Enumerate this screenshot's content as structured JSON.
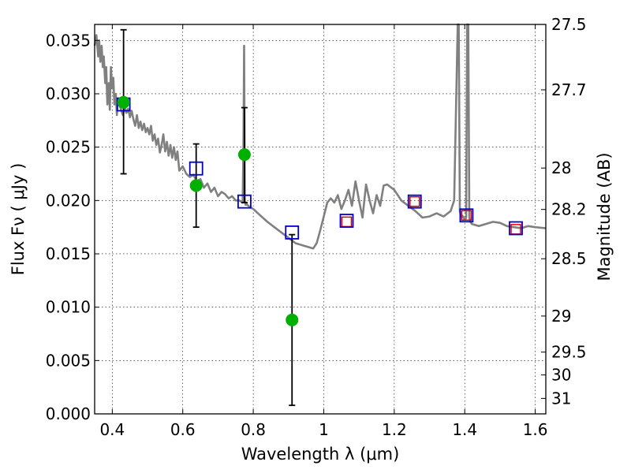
{
  "chart_data": {
    "type": "scatter",
    "xlabel": "Wavelength  λ (μm)",
    "ylabel": "Flux  Fν  ( μJy )",
    "ylabel_right": "Magnitude (AB)",
    "xlim": [
      0.35,
      1.63
    ],
    "ylim": [
      0.0,
      0.0365
    ],
    "grid": true,
    "x_ticks": [
      0.4,
      0.6,
      0.8,
      1.0,
      1.2,
      1.4,
      1.6
    ],
    "x_tick_labels": [
      "0.4",
      "0.6",
      "0.8",
      "1",
      "1.2",
      "1.4",
      "1.6"
    ],
    "y_ticks": [
      0.0,
      0.005,
      0.01,
      0.015,
      0.02,
      0.025,
      0.03,
      0.035
    ],
    "y_tick_labels": [
      "0.000",
      "0.005",
      "0.010",
      "0.015",
      "0.020",
      "0.025",
      "0.030",
      "0.035"
    ],
    "right_ticks": [
      {
        "label": "27.5",
        "flux": 0.0365
      },
      {
        "label": "27.7",
        "flux": 0.03037
      },
      {
        "label": "28",
        "flux": 0.02304
      },
      {
        "label": "28.2",
        "flux": 0.01916
      },
      {
        "label": "28.5",
        "flux": 0.01454
      },
      {
        "label": "29",
        "flux": 0.00917
      },
      {
        "label": "29.5",
        "flux": 0.00579
      },
      {
        "label": "30",
        "flux": 0.00365
      },
      {
        "label": "31",
        "flux": 0.00145
      }
    ],
    "sed_model": {
      "color": "#808080",
      "x": [
        0.35,
        0.355,
        0.36,
        0.363,
        0.366,
        0.37,
        0.373,
        0.376,
        0.38,
        0.383,
        0.386,
        0.39,
        0.393,
        0.396,
        0.4,
        0.403,
        0.406,
        0.41,
        0.413,
        0.416,
        0.42,
        0.425,
        0.43,
        0.435,
        0.44,
        0.445,
        0.45,
        0.455,
        0.46,
        0.465,
        0.47,
        0.475,
        0.48,
        0.485,
        0.49,
        0.495,
        0.5,
        0.505,
        0.51,
        0.515,
        0.52,
        0.525,
        0.53,
        0.535,
        0.54,
        0.545,
        0.55,
        0.555,
        0.56,
        0.565,
        0.57,
        0.575,
        0.58,
        0.585,
        0.59,
        0.6,
        0.61,
        0.62,
        0.63,
        0.64,
        0.65,
        0.66,
        0.67,
        0.68,
        0.69,
        0.7,
        0.71,
        0.72,
        0.73,
        0.74,
        0.75,
        0.76,
        0.77,
        0.772,
        0.774,
        0.776,
        0.778,
        0.78,
        0.782,
        0.79,
        0.8,
        0.82,
        0.84,
        0.86,
        0.88,
        0.9,
        0.92,
        0.94,
        0.96,
        0.97,
        0.98,
        0.99,
        1.0,
        1.01,
        1.02,
        1.03,
        1.04,
        1.05,
        1.06,
        1.07,
        1.08,
        1.09,
        1.1,
        1.11,
        1.12,
        1.13,
        1.14,
        1.15,
        1.16,
        1.17,
        1.18,
        1.2,
        1.22,
        1.24,
        1.26,
        1.28,
        1.3,
        1.32,
        1.34,
        1.36,
        1.37,
        1.38,
        1.383,
        1.386,
        1.389,
        1.392,
        1.395,
        1.398,
        1.401,
        1.404,
        1.407,
        1.41,
        1.413,
        1.416,
        1.42,
        1.44,
        1.46,
        1.48,
        1.5,
        1.52,
        1.54,
        1.56,
        1.58,
        1.6,
        1.63
      ],
      "y": [
        0.0345,
        0.0355,
        0.0335,
        0.035,
        0.033,
        0.0345,
        0.0325,
        0.0335,
        0.031,
        0.0325,
        0.029,
        0.031,
        0.0285,
        0.0325,
        0.0305,
        0.0315,
        0.029,
        0.03,
        0.028,
        0.0295,
        0.029,
        0.0285,
        0.028,
        0.0288,
        0.0282,
        0.0286,
        0.0278,
        0.0284,
        0.0276,
        0.027,
        0.028,
        0.0268,
        0.0274,
        0.0266,
        0.0272,
        0.0264,
        0.0268,
        0.0262,
        0.027,
        0.0256,
        0.0262,
        0.0252,
        0.0258,
        0.0245,
        0.0252,
        0.0262,
        0.0246,
        0.0255,
        0.0242,
        0.0252,
        0.024,
        0.025,
        0.0238,
        0.0246,
        0.0228,
        0.0232,
        0.0225,
        0.0222,
        0.0224,
        0.0218,
        0.022,
        0.0212,
        0.0216,
        0.0208,
        0.0212,
        0.0204,
        0.0208,
        0.0206,
        0.0202,
        0.0204,
        0.02,
        0.02,
        0.0198,
        0.025,
        0.0345,
        0.02,
        0.0196,
        0.0198,
        0.0196,
        0.0194,
        0.0192,
        0.0186,
        0.018,
        0.0175,
        0.017,
        0.0165,
        0.016,
        0.0158,
        0.0156,
        0.0155,
        0.016,
        0.0172,
        0.0185,
        0.0198,
        0.0202,
        0.0198,
        0.0205,
        0.0192,
        0.02,
        0.021,
        0.0195,
        0.0218,
        0.02,
        0.0184,
        0.0215,
        0.02,
        0.0188,
        0.0205,
        0.0195,
        0.0214,
        0.0215,
        0.021,
        0.02,
        0.0195,
        0.019,
        0.0184,
        0.0185,
        0.0188,
        0.0185,
        0.019,
        0.02,
        0.038,
        0.038,
        0.019,
        0.0185,
        0.0186,
        0.0185,
        0.0183,
        0.0182,
        0.0184,
        0.038,
        0.038,
        0.0184,
        0.018,
        0.0178,
        0.0176,
        0.0178,
        0.018,
        0.0179,
        0.0176,
        0.0175,
        0.0174,
        0.0176,
        0.0175,
        0.0174
      ]
    },
    "model_photometry": {
      "color": "#0000cc",
      "x": [
        0.432,
        0.638,
        0.775,
        0.91,
        1.065,
        1.258,
        1.405,
        1.545
      ],
      "y": [
        0.029,
        0.023,
        0.0199,
        0.017,
        0.0181,
        0.0199,
        0.0186,
        0.0174
      ]
    },
    "observed_detections": {
      "color": "#00b000",
      "x": [
        0.432,
        0.638,
        0.775,
        0.91
      ],
      "y": [
        0.0292,
        0.0214,
        0.0243,
        0.0088
      ],
      "err_low": [
        0.0067,
        0.0039,
        0.0045,
        0.008
      ],
      "err_high": [
        0.0068,
        0.0039,
        0.0044,
        0.008
      ]
    },
    "observed_red_markers": {
      "color": "#dd0000",
      "x": [
        1.065,
        1.258,
        1.405,
        1.545
      ],
      "y": [
        0.018,
        0.0199,
        0.0186,
        0.0173
      ]
    }
  }
}
